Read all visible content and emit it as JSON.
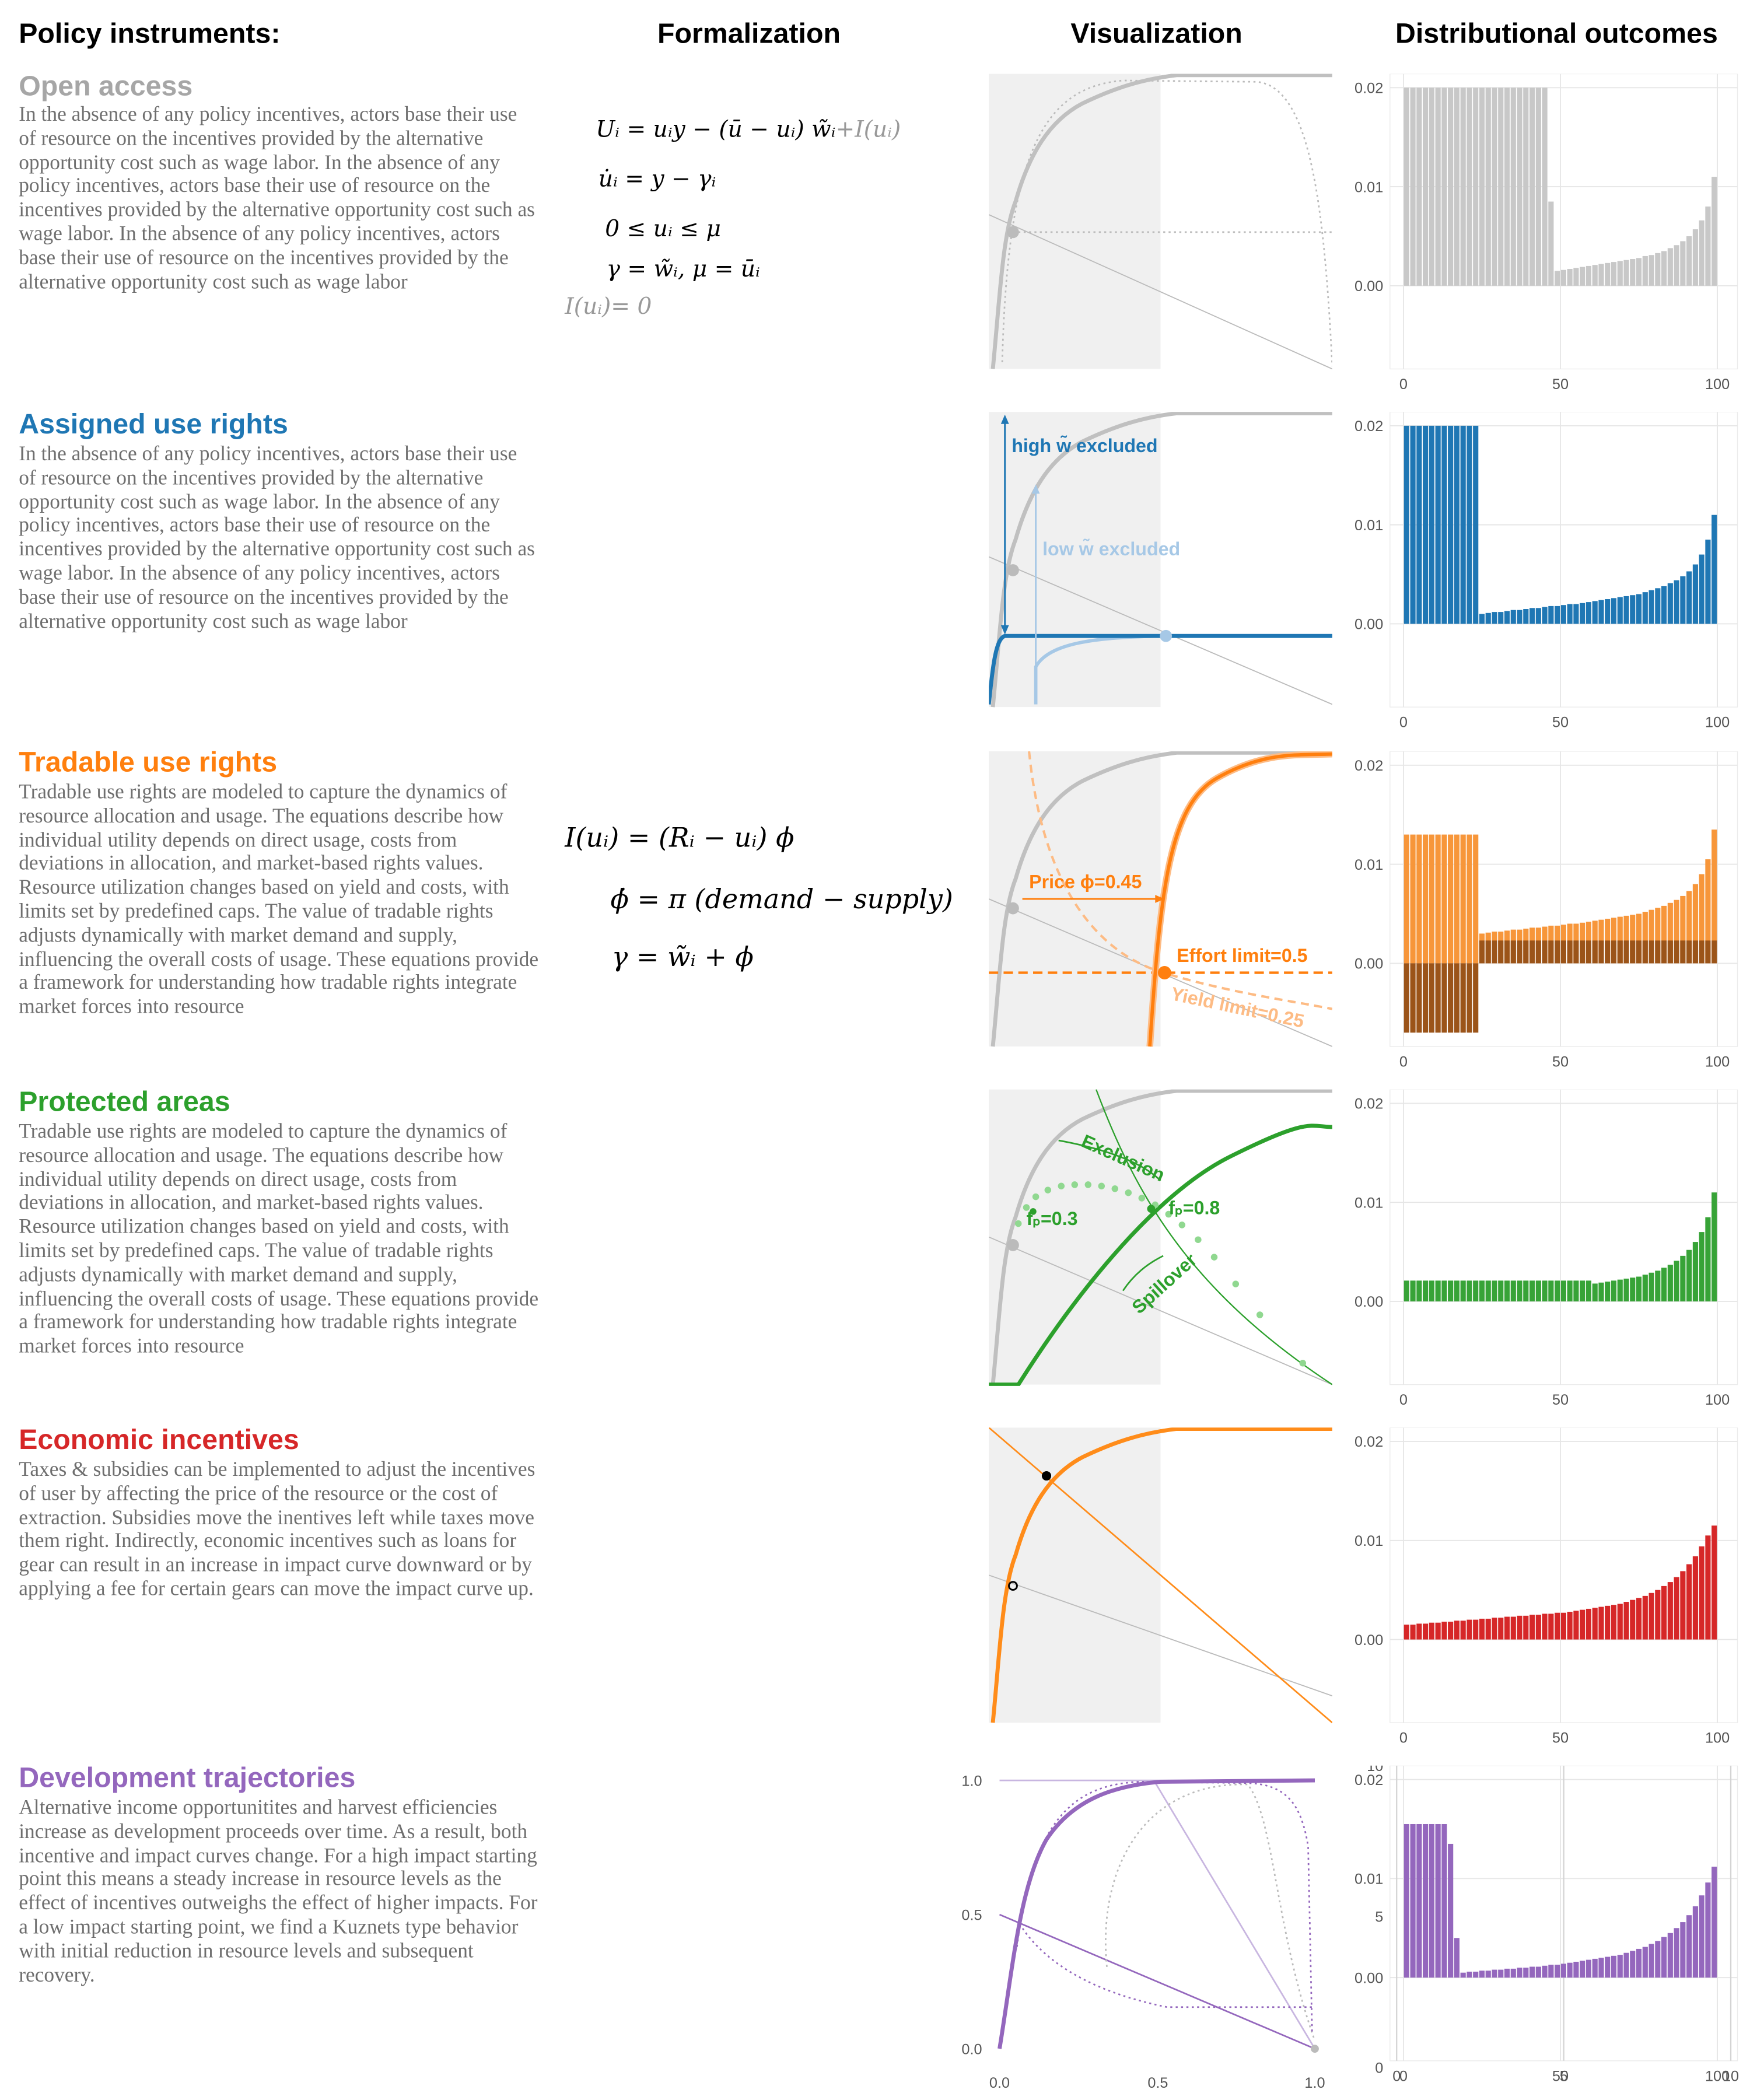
{
  "headers": [
    "Policy instruments:",
    "Formalization",
    "Visualization",
    "Distributional outcomes"
  ],
  "rows": [
    {
      "title": "Open access",
      "color": "#a6a6a6",
      "description": "In the absence of any policy incentives, actors base their use of resource on the incentives provided by the alternative opportunity cost such as wage labor.  In the absence of any policy incentives, actors base their use of resource on the incentives provided by the alternative opportunity cost such as wage labor.  In the absence of any policy incentives, actors base their use of resource on the incentives provided by the alternative opportunity cost such as wage labor",
      "equations": [
        "Uᵢ = uᵢy  −  (ū − uᵢ) w̃ᵢ",
        "+I(uᵢ)",
        "u̇ᵢ = y − γᵢ",
        "0 ≤ uᵢ ≤ μ",
        "γ = w̃ᵢ, μ = ūᵢ",
        "I(uᵢ)= 0"
      ]
    },
    {
      "title": "Assigned use rights",
      "color": "#1f77b4",
      "description": "In the absence of any policy incentives, actors base their use of resource on the incentives provided by the alternative opportunity cost such as wage labor.  In the absence of any policy incentives, actors base their use of resource on the incentives provided by the alternative opportunity cost such as wage labor.  In the absence of any policy incentives, actors base their use of resource on the incentives provided by the alternative opportunity cost such as wage labor",
      "annotations": [
        "high w̃ excluded",
        "low w̃ excluded"
      ]
    },
    {
      "title": "Tradable use rights",
      "color": "#ff7f0e",
      "description": "Tradable use rights are modeled to capture the dynamics of resource allocation and usage. The equations describe how individual utility depends on direct usage, costs from deviations in allocation, and market-based rights values. Resource utilization changes based on yield and costs, with limits set by predefined caps. The value of tradable rights adjusts dynamically with market demand and supply, influencing the overall costs of usage. These equations provide a framework for understanding how tradable rights integrate market forces into resource",
      "equations": [
        "I(uᵢ) = (Rᵢ − uᵢ) ϕ",
        "ϕ̇ = π (demand − supply)",
        "γ = w̃ᵢ + ϕ"
      ],
      "annotations": [
        "Price ϕ=0.45",
        "Effort limit=0.5",
        "Yield limit=0.25"
      ]
    },
    {
      "title": "Protected areas",
      "color": "#2ca02c",
      "description": "Tradable use rights are modeled to capture the dynamics of resource allocation and usage. The equations describe how individual utility depends on direct usage, costs from deviations in allocation, and market-based rights values. Resource utilization changes based on yield and costs, with limits set by predefined caps. The value of tradable rights adjusts dynamically with market demand and supply, influencing the overall costs of usage. These equations provide a framework for understanding how tradable rights integrate market forces into resource",
      "annotations": [
        "Exclusion",
        "Spillover",
        "fₚ=0.3",
        "fₚ=0.8"
      ]
    },
    {
      "title": "Economic incentives",
      "color": "#d62728",
      "description": "Taxes & subsidies can be implemented to adjust the incentives of user by affecting the price of the resource or the cost of extraction. Subsidies move the inentives left while taxes move them right. Indirectly, economic incentives such as loans for gear can result in an increase in impact curve downward or by applying a fee for certain gears can move the impact curve up."
    },
    {
      "title": "Development trajectories",
      "color": "#9467bd",
      "description": "Alternative income opportunitites and harvest efficiencies increase as development proceeds over time. As a result, both incentive and impact curves change. For a high impact starting point this means a steady increase in resource levels as the effect of incentives outweighs the effect of higher impacts. For a low impact starting point, we find a Kuznets type behavior with initial reduction in resource levels and subsequent recovery.",
      "axis_labels": {
        "y": [
          "1.0",
          "0.5",
          "0.0"
        ],
        "x": [
          "0.0",
          "0.5",
          "1.0"
        ]
      }
    }
  ],
  "chart_data": [
    {
      "type": "histogram",
      "bins": [
        0,
        2,
        4,
        6,
        8,
        10,
        12,
        14,
        16,
        18,
        20,
        22,
        24,
        26,
        28,
        30,
        32,
        34,
        36,
        38,
        40,
        42,
        44,
        46,
        48,
        50,
        52,
        54,
        56,
        58,
        60,
        62,
        64,
        66,
        68,
        70,
        72,
        74,
        76,
        78,
        80,
        82,
        84,
        86,
        88,
        90,
        92,
        94,
        96,
        98,
        100
      ],
      "series": [
        {
          "color": "#c8c8c8",
          "values": [
            0.02,
            0.02,
            0.02,
            0.02,
            0.02,
            0.02,
            0.02,
            0.02,
            0.02,
            0.02,
            0.02,
            0.02,
            0.02,
            0.02,
            0.02,
            0.02,
            0.02,
            0.02,
            0.02,
            0.02,
            0.02,
            0.02,
            0.02,
            0.0085,
            0.0015,
            0.0016,
            0.0017,
            0.0018,
            0.0019,
            0.002,
            0.0021,
            0.0022,
            0.0023,
            0.0024,
            0.0025,
            0.0026,
            0.0027,
            0.0028,
            0.003,
            0.0031,
            0.0033,
            0.0035,
            0.0038,
            0.0041,
            0.0045,
            0.005,
            0.0057,
            0.0066,
            0.008,
            0.011
          ]
        }
      ],
      "xlim": [
        -4.3,
        106.4
      ],
      "xticks": [
        0,
        50,
        100
      ],
      "ylim": [
        -0.0084,
        0.0214
      ],
      "yticks": [
        {
          "value": 0,
          "label": "0.00"
        },
        {
          "value": 0.01,
          "label": "0.01"
        },
        {
          "value": 0.02,
          "label": "0.02"
        }
      ],
      "grid": true
    },
    {
      "type": "histogram",
      "bins": [
        0,
        2,
        4,
        6,
        8,
        10,
        12,
        14,
        16,
        18,
        20,
        22,
        24,
        26,
        28,
        30,
        32,
        34,
        36,
        38,
        40,
        42,
        44,
        46,
        48,
        50,
        52,
        54,
        56,
        58,
        60,
        62,
        64,
        66,
        68,
        70,
        72,
        74,
        76,
        78,
        80,
        82,
        84,
        86,
        88,
        90,
        92,
        94,
        96,
        98,
        100
      ],
      "series": [
        {
          "color": "#1f77b4",
          "values": [
            0.02,
            0.02,
            0.02,
            0.02,
            0.02,
            0.02,
            0.02,
            0.02,
            0.02,
            0.02,
            0.02,
            0.02,
            0.001,
            0.0011,
            0.0012,
            0.0012,
            0.0013,
            0.0014,
            0.0014,
            0.0015,
            0.0016,
            0.0016,
            0.0017,
            0.0018,
            0.0018,
            0.0019,
            0.002,
            0.002,
            0.0021,
            0.0022,
            0.0023,
            0.0024,
            0.0025,
            0.0026,
            0.0027,
            0.0028,
            0.0029,
            0.003,
            0.0032,
            0.0034,
            0.0036,
            0.0038,
            0.0041,
            0.0044,
            0.0048,
            0.0053,
            0.006,
            0.007,
            0.0085,
            0.011
          ]
        }
      ],
      "xlim": [
        -4.3,
        106.4
      ],
      "xticks": [
        0,
        50,
        100
      ],
      "ylim": [
        -0.0084,
        0.0214
      ],
      "yticks": [
        {
          "value": 0,
          "label": "0.00"
        },
        {
          "value": 0.01,
          "label": "0.01"
        },
        {
          "value": 0.02,
          "label": "0.02"
        }
      ],
      "grid": true
    },
    {
      "type": "histogram",
      "bins": [
        0,
        2,
        4,
        6,
        8,
        10,
        12,
        14,
        16,
        18,
        20,
        22,
        24,
        26,
        28,
        30,
        32,
        34,
        36,
        38,
        40,
        42,
        44,
        46,
        48,
        50,
        52,
        54,
        56,
        58,
        60,
        62,
        64,
        66,
        68,
        70,
        72,
        74,
        76,
        78,
        80,
        82,
        84,
        86,
        88,
        90,
        92,
        94,
        96,
        98,
        100
      ],
      "series": [
        {
          "color": "#f7963a",
          "values": [
            0.013,
            0.013,
            0.013,
            0.013,
            0.013,
            0.013,
            0.013,
            0.013,
            0.013,
            0.013,
            0.013,
            0.013,
            0.003,
            0.0031,
            0.0032,
            0.0032,
            0.0033,
            0.0034,
            0.0034,
            0.0035,
            0.0036,
            0.0036,
            0.0037,
            0.0038,
            0.0038,
            0.0039,
            0.004,
            0.004,
            0.0041,
            0.0042,
            0.0043,
            0.0044,
            0.0045,
            0.0046,
            0.0047,
            0.0048,
            0.0049,
            0.005,
            0.0052,
            0.0054,
            0.0056,
            0.0058,
            0.0061,
            0.0064,
            0.0068,
            0.0073,
            0.008,
            0.009,
            0.0105,
            0.0135
          ]
        },
        {
          "color": "#9b5419",
          "values": [
            -0.007,
            -0.007,
            -0.007,
            -0.007,
            -0.007,
            -0.007,
            -0.007,
            -0.007,
            -0.007,
            -0.007,
            -0.007,
            -0.007,
            0.0023,
            0.0023,
            0.0023,
            0.0023,
            0.0023,
            0.0023,
            0.0023,
            0.0023,
            0.0023,
            0.0023,
            0.0023,
            0.0023,
            0.0023,
            0.0023,
            0.0023,
            0.0023,
            0.0023,
            0.0023,
            0.0023,
            0.0023,
            0.0023,
            0.0023,
            0.0023,
            0.0023,
            0.0023,
            0.0023,
            0.0023,
            0.0023,
            0.0023,
            0.0023,
            0.0023,
            0.0023,
            0.0023,
            0.0023,
            0.0023,
            0.0023,
            0.0023,
            0.0023
          ]
        }
      ],
      "xlim": [
        -4.3,
        106.4
      ],
      "xticks": [
        0,
        50,
        100
      ],
      "ylim": [
        -0.0084,
        0.0214
      ],
      "yticks": [
        {
          "value": 0,
          "label": "0.00"
        },
        {
          "value": 0.01,
          "label": "0.01"
        },
        {
          "value": 0.02,
          "label": "0.02"
        }
      ],
      "grid": true
    },
    {
      "type": "histogram",
      "bins": [
        0,
        2,
        4,
        6,
        8,
        10,
        12,
        14,
        16,
        18,
        20,
        22,
        24,
        26,
        28,
        30,
        32,
        34,
        36,
        38,
        40,
        42,
        44,
        46,
        48,
        50,
        52,
        54,
        56,
        58,
        60,
        62,
        64,
        66,
        68,
        70,
        72,
        74,
        76,
        78,
        80,
        82,
        84,
        86,
        88,
        90,
        92,
        94,
        96,
        98,
        100
      ],
      "series": [
        {
          "color": "#37a337",
          "values": [
            0.0021,
            0.0021,
            0.0021,
            0.0021,
            0.0021,
            0.0021,
            0.0021,
            0.0021,
            0.0021,
            0.0021,
            0.0021,
            0.0021,
            0.0021,
            0.0021,
            0.0021,
            0.0021,
            0.0021,
            0.0021,
            0.0021,
            0.0021,
            0.0021,
            0.0021,
            0.0021,
            0.0021,
            0.0021,
            0.0021,
            0.0021,
            0.0021,
            0.0021,
            0.0021,
            0.0018,
            0.0019,
            0.002,
            0.0021,
            0.0022,
            0.0023,
            0.0024,
            0.0025,
            0.0027,
            0.0029,
            0.0031,
            0.0034,
            0.0037,
            0.0041,
            0.0046,
            0.0052,
            0.006,
            0.007,
            0.0085,
            0.011
          ]
        }
      ],
      "xlim": [
        -4.3,
        106.4
      ],
      "xticks": [
        0,
        50,
        100
      ],
      "ylim": [
        -0.0084,
        0.0214
      ],
      "yticks": [
        {
          "value": 0,
          "label": "0.00"
        },
        {
          "value": 0.01,
          "label": "0.01"
        },
        {
          "value": 0.02,
          "label": "0.02"
        }
      ],
      "grid": true
    },
    {
      "type": "histogram",
      "bins": [
        0,
        2,
        4,
        6,
        8,
        10,
        12,
        14,
        16,
        18,
        20,
        22,
        24,
        26,
        28,
        30,
        32,
        34,
        36,
        38,
        40,
        42,
        44,
        46,
        48,
        50,
        52,
        54,
        56,
        58,
        60,
        62,
        64,
        66,
        68,
        70,
        72,
        74,
        76,
        78,
        80,
        82,
        84,
        86,
        88,
        90,
        92,
        94,
        96,
        98,
        100
      ],
      "series": [
        {
          "color": "#d62728",
          "values": [
            0.0015,
            0.0015,
            0.0016,
            0.0016,
            0.0017,
            0.0017,
            0.0018,
            0.0018,
            0.0019,
            0.0019,
            0.002,
            0.002,
            0.0021,
            0.0021,
            0.0022,
            0.0022,
            0.0023,
            0.0023,
            0.0024,
            0.0024,
            0.0025,
            0.0025,
            0.0026,
            0.0026,
            0.0027,
            0.0027,
            0.0028,
            0.0029,
            0.003,
            0.0031,
            0.0032,
            0.0033,
            0.0034,
            0.0035,
            0.0036,
            0.0038,
            0.004,
            0.0042,
            0.0044,
            0.0047,
            0.005,
            0.0054,
            0.0058,
            0.0063,
            0.0069,
            0.0076,
            0.0084,
            0.0094,
            0.0105,
            0.0115
          ]
        }
      ],
      "xlim": [
        -4.3,
        106.4
      ],
      "xticks": [
        0,
        50,
        100
      ],
      "ylim": [
        -0.0084,
        0.0214
      ],
      "yticks": [
        {
          "value": 0,
          "label": "0.00"
        },
        {
          "value": 0.01,
          "label": "0.01"
        },
        {
          "value": 0.02,
          "label": "0.02"
        }
      ],
      "grid": true
    },
    {
      "type": "histogram",
      "bins": [
        0,
        2,
        4,
        6,
        8,
        10,
        12,
        14,
        16,
        18,
        20,
        22,
        24,
        26,
        28,
        30,
        32,
        34,
        36,
        38,
        40,
        42,
        44,
        46,
        48,
        50,
        52,
        54,
        56,
        58,
        60,
        62,
        64,
        66,
        68,
        70,
        72,
        74,
        76,
        78,
        80,
        82,
        84,
        86,
        88,
        90,
        92,
        94,
        96,
        98,
        100
      ],
      "series": [
        {
          "color": "#9467bd",
          "values": [
            0.0155,
            0.0155,
            0.0155,
            0.0155,
            0.0155,
            0.0155,
            0.0155,
            0.0135,
            0.004,
            0.0005,
            0.0006,
            0.0006,
            0.0007,
            0.0007,
            0.0008,
            0.0008,
            0.0009,
            0.0009,
            0.001,
            0.001,
            0.0011,
            0.0011,
            0.0012,
            0.0013,
            0.0013,
            0.0014,
            0.0015,
            0.0016,
            0.0017,
            0.0018,
            0.0019,
            0.002,
            0.0021,
            0.0022,
            0.0023,
            0.0025,
            0.0027,
            0.0029,
            0.0031,
            0.0034,
            0.0037,
            0.0041,
            0.0045,
            0.005,
            0.0056,
            0.0063,
            0.0072,
            0.0083,
            0.0096,
            0.0112
          ]
        }
      ],
      "xlim": [
        -4.3,
        106.4
      ],
      "xticks": [
        0,
        50,
        100
      ],
      "ylim": [
        -0.0084,
        0.0214
      ],
      "yticks": [
        {
          "value": 0,
          "label": "0.00"
        },
        {
          "value": 0.01,
          "label": "0.01"
        },
        {
          "value": 0.02,
          "label": "0.02"
        }
      ],
      "grid": true,
      "y2lim": [
        0,
        10
      ],
      "y2ticks": [
        0,
        5,
        10
      ],
      "x2lim": [
        -0.2,
        10.2
      ],
      "x2ticks": [
        0,
        5,
        10
      ]
    }
  ]
}
